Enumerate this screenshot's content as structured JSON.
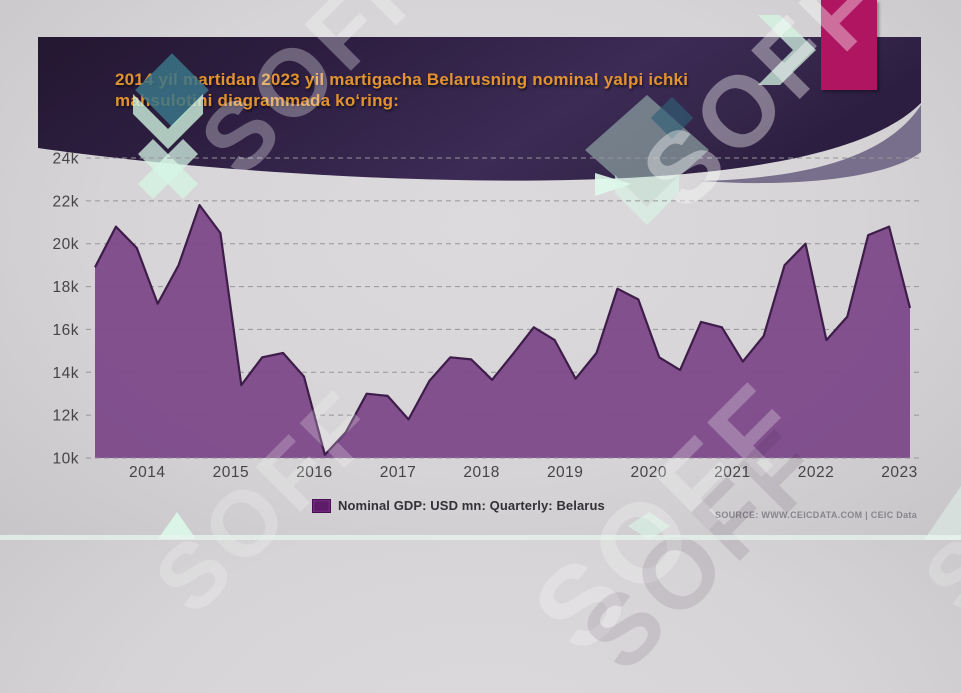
{
  "slide": {
    "title_line1": "2014 yil martidan 2023 yil martigacha Belarusning nominal yalpi ichki",
    "title_line2": "mahsulotini diagrammada koʻring:",
    "accent_bar_color": "#b01561",
    "watermark_text": "SOFF",
    "source_credit": "SOURCE: WWW.CEICDATA.COM | CEIC Data"
  },
  "legend": {
    "swatch_color": "#5d1b68",
    "label": "Nominal GDP: USD mn: Quarterly: Belarus"
  },
  "chart_data": {
    "type": "area",
    "title": "Nominal GDP, Belarus, quarterly, USD mn",
    "series_name": "Nominal GDP: USD mn: Quarterly: Belarus",
    "unit": "USD mn",
    "frequency": "Quarterly",
    "country": "Belarus",
    "grid": true,
    "legend_position": "bottom",
    "fill_color": "#7d4a89",
    "line_color": "#3f1d4a",
    "ylim": [
      10000,
      24000
    ],
    "y_ticks": [
      {
        "label": "24k",
        "value": 24000
      },
      {
        "label": "22k",
        "value": 22000
      },
      {
        "label": "20k",
        "value": 20000
      },
      {
        "label": "18k",
        "value": 18000
      },
      {
        "label": "16k",
        "value": 16000
      },
      {
        "label": "14k",
        "value": 14000
      },
      {
        "label": "12k",
        "value": 12000
      },
      {
        "label": "10k",
        "value": 10000
      }
    ],
    "year_labels": [
      "2014",
      "2015",
      "2016",
      "2017",
      "2018",
      "2019",
      "2020",
      "2021",
      "2022",
      "2023"
    ],
    "x": [
      "2013-06",
      "2013-09",
      "2013-12",
      "2014-03",
      "2014-06",
      "2014-09",
      "2014-12",
      "2015-03",
      "2015-06",
      "2015-09",
      "2015-12",
      "2016-03",
      "2016-06",
      "2016-09",
      "2016-12",
      "2017-03",
      "2017-06",
      "2017-09",
      "2017-12",
      "2018-03",
      "2018-06",
      "2018-09",
      "2018-12",
      "2019-03",
      "2019-06",
      "2019-09",
      "2019-12",
      "2020-03",
      "2020-06",
      "2020-09",
      "2020-12",
      "2021-03",
      "2021-06",
      "2021-09",
      "2021-12",
      "2022-03",
      "2022-06",
      "2022-09",
      "2022-12",
      "2023-03"
    ],
    "values": [
      18900,
      20800,
      19800,
      17200,
      19000,
      21800,
      20500,
      13400,
      14700,
      14900,
      13800,
      10150,
      11200,
      13000,
      12900,
      11800,
      13600,
      14700,
      14600,
      13650,
      14850,
      16100,
      15500,
      13700,
      14900,
      17900,
      17400,
      14700,
      14100,
      16350,
      16100,
      14500,
      15700,
      19000,
      20000,
      15500,
      16600,
      20400,
      20800,
      17000
    ]
  }
}
